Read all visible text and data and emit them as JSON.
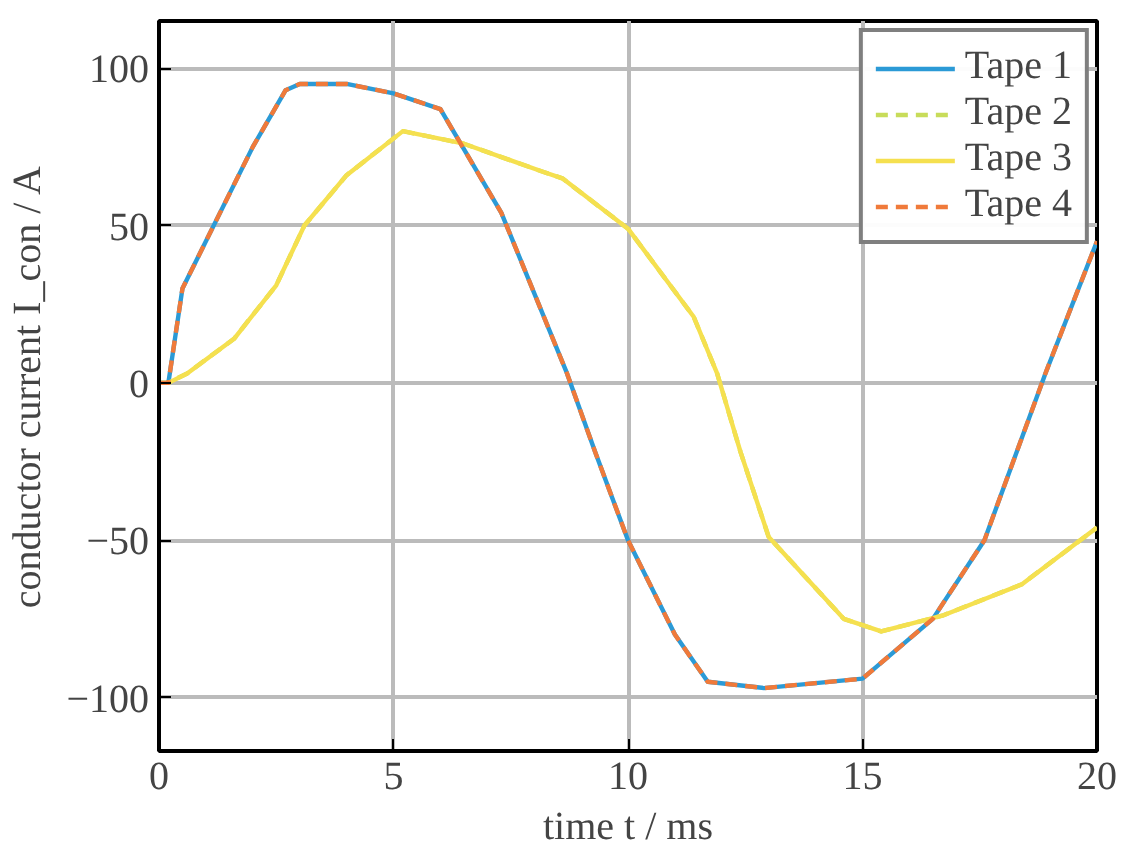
{
  "chart_data": {
    "type": "line",
    "xlabel": "time t / ms",
    "ylabel": "conductor current I_con / A",
    "xlim": [
      0,
      20
    ],
    "ylim": [
      -117,
      115
    ],
    "xticks": [
      0,
      5,
      10,
      15,
      20
    ],
    "yticks": [
      -100,
      -50,
      0,
      50,
      100
    ],
    "grid": true,
    "legend": "top right",
    "marker": "none",
    "series": [
      {
        "name": "Tape 1",
        "color": "#2b9ad6",
        "line_style": "solid",
        "x": [
          0,
          0.2,
          0.5,
          1,
          2,
          2.7,
          3,
          4,
          5,
          6,
          7.3,
          8.7,
          9.3,
          10,
          11,
          11.7,
          12.9,
          15,
          16.5,
          17.6,
          18.9,
          20
        ],
        "values": [
          0,
          0,
          30,
          45,
          75,
          93,
          95,
          95,
          92,
          87,
          54,
          3,
          -22,
          -50,
          -80,
          -95,
          -97,
          -94,
          -75,
          -50,
          3,
          45
        ]
      },
      {
        "name": "Tape 2",
        "color": "#c8dc5a",
        "line_style": "dashed",
        "x": [
          0,
          0.2,
          0.6,
          1.6,
          2.5,
          3.1,
          4,
          5.2,
          6.5,
          8.2,
          8.6,
          10,
          11.4,
          11.9,
          12.4,
          13,
          14.6,
          15.4,
          16.7,
          18.4,
          20
        ],
        "values": [
          0,
          0,
          3,
          14,
          31,
          50,
          66,
          80,
          76,
          67,
          65,
          49,
          21,
          3,
          -22,
          -49,
          -75,
          -79,
          -74,
          -64,
          -46
        ]
      },
      {
        "name": "Tape 3",
        "color": "#f5e04f",
        "line_style": "solid",
        "x": [
          0,
          0.2,
          0.6,
          1.6,
          2.5,
          3.1,
          4,
          5.2,
          6.5,
          8.2,
          8.6,
          10,
          11.4,
          11.9,
          12.4,
          13,
          14.6,
          15.4,
          16.7,
          18.4,
          20
        ],
        "values": [
          0,
          0,
          3,
          14,
          31,
          50,
          66,
          80,
          76,
          67,
          65,
          49,
          21,
          3,
          -22,
          -49,
          -75,
          -79,
          -74,
          -64,
          -46
        ]
      },
      {
        "name": "Tape 4",
        "color": "#f07a3a",
        "line_style": "dashed",
        "x": [
          0,
          0.2,
          0.5,
          1,
          2,
          2.7,
          3,
          4,
          5,
          6,
          7.3,
          8.7,
          9.3,
          10,
          11,
          11.7,
          12.9,
          15,
          16.5,
          17.6,
          18.9,
          20
        ],
        "values": [
          0,
          0,
          30,
          45,
          75,
          93,
          95,
          95,
          92,
          87,
          54,
          3,
          -22,
          -50,
          -80,
          -95,
          -97,
          -94,
          -75,
          -50,
          3,
          45
        ]
      }
    ]
  }
}
